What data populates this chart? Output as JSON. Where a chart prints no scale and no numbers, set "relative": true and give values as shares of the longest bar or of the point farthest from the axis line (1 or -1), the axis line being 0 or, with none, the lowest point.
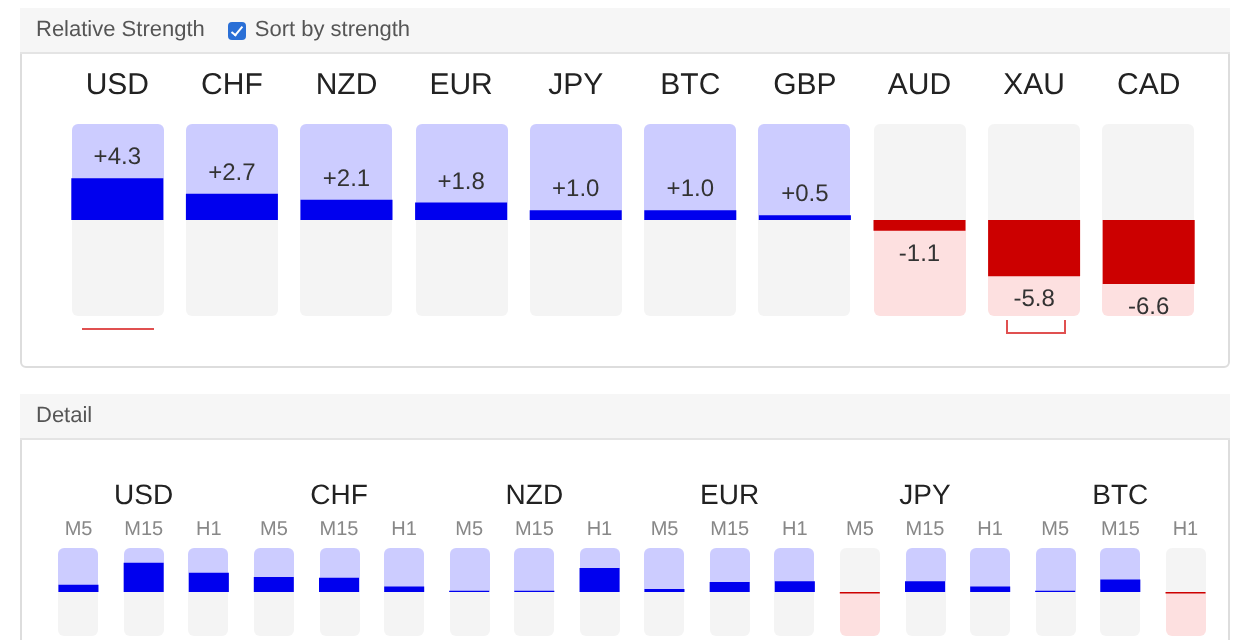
{
  "chart_data": [
    {
      "type": "bar",
      "title": "Relative Strength",
      "annotations": [
        "Sort by strength"
      ],
      "categories": [
        "USD",
        "CHF",
        "NZD",
        "EUR",
        "JPY",
        "BTC",
        "GBP",
        "AUD",
        "XAU",
        "CAD"
      ],
      "values": [
        4.3,
        2.7,
        2.1,
        1.8,
        1.0,
        1.0,
        0.5,
        -1.1,
        -5.8,
        -6.6
      ],
      "value_labels": [
        "+4.3",
        "+2.7",
        "+2.1",
        "+1.8",
        "+1.0",
        "+1.0",
        "+0.5",
        "-1.1",
        "-5.8",
        "-6.6"
      ],
      "colors": [
        "#0000ee",
        "#0000ee",
        "#0000ee",
        "#0000ee",
        "#0000ee",
        "#0000ee",
        "#0000ee",
        "#cc0000",
        "#cc0000",
        "#cc0000"
      ],
      "tick_labels": "x"
    },
    {
      "type": "bar",
      "title": "Detail",
      "relative": true,
      "tick_labels": "x",
      "categories": [
        "USD",
        "CHF",
        "NZD",
        "EUR",
        "JPY",
        "BTC"
      ],
      "series": [
        {
          "name": "M5",
          "values": [
            0.25,
            0.51,
            0.04,
            0.1,
            -0.05,
            0.04
          ],
          "colors": [
            "#0000ee",
            "#0000ee",
            "#0000ee",
            "#0000ee",
            "#cc0000",
            "#0000ee"
          ]
        },
        {
          "name": "M15",
          "values": [
            1,
            0.49,
            0.04,
            0.34,
            0.37,
            0.43
          ],
          "colors": [
            "#0000ee",
            "#0000ee",
            "#0000ee",
            "#0000ee",
            "#0000ee",
            "#0000ee"
          ]
        },
        {
          "name": "H1",
          "values": [
            0.66,
            0.19,
            0.82,
            0.37,
            0.19,
            -0.05
          ],
          "colors": [
            "#0000ee",
            "#0000ee",
            "#0000ee",
            "#0000ee",
            "#0000ee",
            "#cc0000"
          ]
        }
      ]
    }
  ]
}
